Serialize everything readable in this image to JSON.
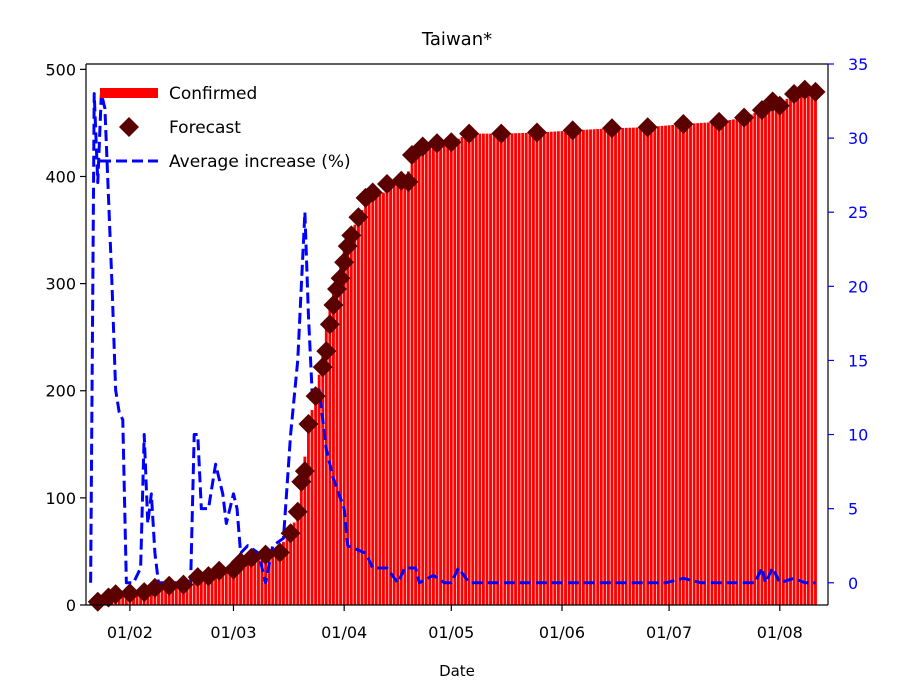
{
  "chart_data": {
    "type": "bar",
    "title": "Taiwan*",
    "xlabel": "Date",
    "ylabel": "",
    "y2label": "",
    "x_ticks": [
      "01/02",
      "01/03",
      "01/04",
      "01/05",
      "01/06",
      "01/07",
      "01/08"
    ],
    "y_ticks": [
      0,
      100,
      200,
      300,
      400,
      500
    ],
    "y2_ticks": [
      0,
      5,
      10,
      15,
      20,
      25,
      30,
      35
    ],
    "ylim": [
      0,
      505
    ],
    "y2lim": [
      -1.5,
      35
    ],
    "grid": false,
    "legend_placement": "top-left",
    "colors": {
      "confirmed": "#ff0000",
      "forecast": "#5a0000",
      "average": "#0000ff",
      "right_axis": "#0000ff"
    },
    "series": [
      {
        "name": "Confirmed",
        "kind": "bar",
        "points": [
          [
            "01/21",
            1
          ],
          [
            "01/26",
            4
          ],
          [
            "01/28",
            8
          ],
          [
            "01/31",
            10
          ],
          [
            "02/05",
            11
          ],
          [
            "02/08",
            16
          ],
          [
            "02/12",
            18
          ],
          [
            "02/17",
            20
          ],
          [
            "02/22",
            26
          ],
          [
            "02/27",
            32
          ],
          [
            "03/01",
            40
          ],
          [
            "03/05",
            45
          ],
          [
            "03/10",
            47
          ],
          [
            "03/15",
            59
          ],
          [
            "03/18",
            77
          ],
          [
            "03/20",
            108
          ],
          [
            "03/22",
            169
          ],
          [
            "03/24",
            195
          ],
          [
            "03/26",
            235
          ],
          [
            "03/28",
            283
          ],
          [
            "03/31",
            322
          ],
          [
            "04/02",
            339
          ],
          [
            "04/05",
            363
          ],
          [
            "04/08",
            380
          ],
          [
            "04/12",
            385
          ],
          [
            "04/15",
            395
          ],
          [
            "04/18",
            398
          ],
          [
            "04/22",
            425
          ],
          [
            "04/26",
            429
          ],
          [
            "05/01",
            432
          ],
          [
            "05/06",
            440
          ],
          [
            "05/15",
            440
          ],
          [
            "05/25",
            441
          ],
          [
            "06/04",
            443
          ],
          [
            "06/15",
            445
          ],
          [
            "06/25",
            446
          ],
          [
            "07/05",
            449
          ],
          [
            "07/15",
            451
          ],
          [
            "07/22",
            455
          ],
          [
            "07/27",
            462
          ],
          [
            "07/31",
            467
          ],
          [
            "08/05",
            476
          ],
          [
            "08/11",
            479
          ]
        ]
      },
      {
        "name": "Forecast",
        "kind": "scatter",
        "points": [
          [
            "01/23",
            3
          ],
          [
            "01/26",
            7
          ],
          [
            "01/28",
            10
          ],
          [
            "02/01",
            11
          ],
          [
            "02/05",
            12
          ],
          [
            "02/08",
            16
          ],
          [
            "02/12",
            18
          ],
          [
            "02/16",
            19
          ],
          [
            "02/20",
            26
          ],
          [
            "02/23",
            27
          ],
          [
            "02/26",
            32
          ],
          [
            "03/01",
            33
          ],
          [
            "03/03",
            40
          ],
          [
            "03/06",
            44
          ],
          [
            "03/10",
            47
          ],
          [
            "03/14",
            49
          ],
          [
            "03/17",
            67
          ],
          [
            "03/19",
            87
          ],
          [
            "03/20",
            115
          ],
          [
            "03/21",
            125
          ],
          [
            "03/22",
            169
          ],
          [
            "03/24",
            195
          ],
          [
            "03/26",
            222
          ],
          [
            "03/27",
            237
          ],
          [
            "03/28",
            262
          ],
          [
            "03/29",
            280
          ],
          [
            "03/30",
            295
          ],
          [
            "03/31",
            305
          ],
          [
            "04/01",
            320
          ],
          [
            "04/02",
            335
          ],
          [
            "04/03",
            345
          ],
          [
            "04/05",
            362
          ],
          [
            "04/07",
            380
          ],
          [
            "04/09",
            385
          ],
          [
            "04/13",
            393
          ],
          [
            "04/17",
            396
          ],
          [
            "04/19",
            395
          ],
          [
            "04/20",
            420
          ],
          [
            "04/23",
            428
          ],
          [
            "04/27",
            431
          ],
          [
            "05/01",
            432
          ],
          [
            "05/06",
            440
          ],
          [
            "05/15",
            440
          ],
          [
            "05/25",
            441
          ],
          [
            "06/04",
            443
          ],
          [
            "06/15",
            445
          ],
          [
            "06/25",
            446
          ],
          [
            "07/05",
            449
          ],
          [
            "07/15",
            451
          ],
          [
            "07/22",
            455
          ],
          [
            "07/27",
            462
          ],
          [
            "07/30",
            470
          ],
          [
            "08/01",
            466
          ],
          [
            "08/05",
            477
          ],
          [
            "08/08",
            481
          ],
          [
            "08/11",
            479
          ]
        ]
      },
      {
        "name": "Average increase (%)",
        "kind": "line",
        "axis": "right",
        "points": [
          [
            "01/21",
            0
          ],
          [
            "01/22",
            33
          ],
          [
            "01/23",
            27
          ],
          [
            "01/24",
            33
          ],
          [
            "01/25",
            32
          ],
          [
            "01/26",
            26
          ],
          [
            "01/27",
            20
          ],
          [
            "01/28",
            13
          ],
          [
            "01/29",
            11.5
          ],
          [
            "01/30",
            11
          ],
          [
            "01/31",
            0
          ],
          [
            "02/02",
            0
          ],
          [
            "02/04",
            1
          ],
          [
            "02/05",
            10
          ],
          [
            "02/06",
            4
          ],
          [
            "02/07",
            6
          ],
          [
            "02/08",
            2
          ],
          [
            "02/09",
            0
          ],
          [
            "02/12",
            0
          ],
          [
            "02/15",
            0
          ],
          [
            "02/18",
            0
          ],
          [
            "02/19",
            10
          ],
          [
            "02/20",
            10
          ],
          [
            "02/21",
            5
          ],
          [
            "02/23",
            5
          ],
          [
            "02/25",
            8
          ],
          [
            "02/27",
            6
          ],
          [
            "02/28",
            4
          ],
          [
            "03/01",
            6
          ],
          [
            "03/02",
            5
          ],
          [
            "03/03",
            2
          ],
          [
            "03/05",
            2.5
          ],
          [
            "03/08",
            2
          ],
          [
            "03/10",
            0
          ],
          [
            "03/12",
            2.5
          ],
          [
            "03/15",
            3
          ],
          [
            "03/17",
            10
          ],
          [
            "03/19",
            15
          ],
          [
            "03/21",
            25
          ],
          [
            "03/22",
            18
          ],
          [
            "03/23",
            13
          ],
          [
            "03/25",
            13
          ],
          [
            "03/27",
            9
          ],
          [
            "03/29",
            7
          ],
          [
            "04/01",
            5
          ],
          [
            "04/02",
            2.5
          ],
          [
            "04/07",
            2
          ],
          [
            "04/09",
            1
          ],
          [
            "04/13",
            1
          ],
          [
            "04/16",
            0
          ],
          [
            "04/18",
            1
          ],
          [
            "04/21",
            1
          ],
          [
            "04/22",
            0
          ],
          [
            "04/26",
            0.5
          ],
          [
            "04/29",
            0
          ],
          [
            "05/01",
            0
          ],
          [
            "05/03",
            1
          ],
          [
            "05/06",
            0
          ],
          [
            "05/10",
            0
          ],
          [
            "05/20",
            0
          ],
          [
            "05/30",
            0
          ],
          [
            "06/10",
            0
          ],
          [
            "06/20",
            0
          ],
          [
            "06/30",
            0
          ],
          [
            "07/05",
            0.3
          ],
          [
            "07/10",
            0
          ],
          [
            "07/20",
            0
          ],
          [
            "07/25",
            0
          ],
          [
            "07/27",
            1
          ],
          [
            "07/28",
            0
          ],
          [
            "07/30",
            1
          ],
          [
            "08/01",
            0
          ],
          [
            "08/05",
            0.3
          ],
          [
            "08/08",
            0
          ],
          [
            "08/11",
            0
          ]
        ]
      }
    ]
  }
}
